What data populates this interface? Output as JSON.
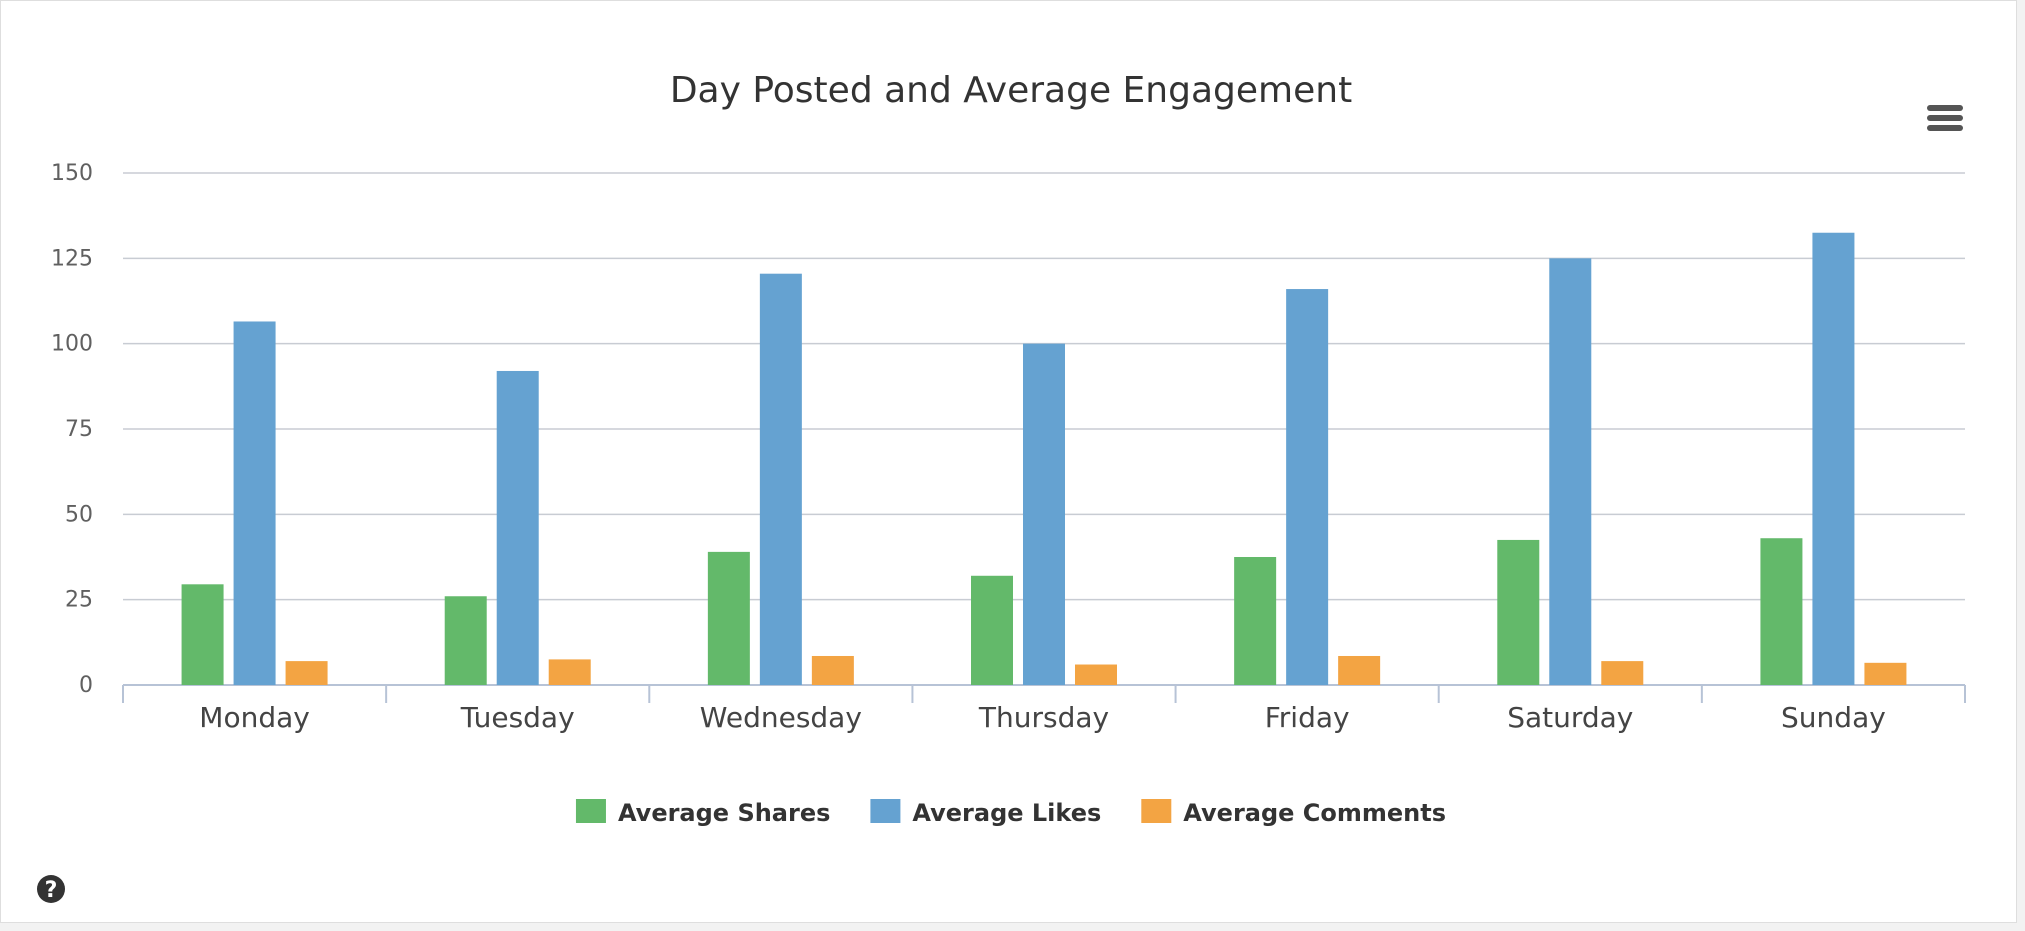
{
  "chart_data": {
    "type": "bar",
    "title": "Day Posted and Average Engagement",
    "xlabel": "",
    "ylabel": "",
    "categories": [
      "Monday",
      "Tuesday",
      "Wednesday",
      "Thursday",
      "Friday",
      "Saturday",
      "Sunday"
    ],
    "ylim": [
      0,
      150
    ],
    "yticks": [
      "0",
      "25",
      "50",
      "75",
      "100",
      "125",
      "150"
    ],
    "grid": true,
    "legend_position": "bottom-center",
    "series": [
      {
        "name": "Average Shares",
        "color": "#63b96a",
        "values": [
          29.5,
          26,
          39,
          32,
          37.5,
          42.5,
          43
        ]
      },
      {
        "name": "Average Likes",
        "color": "#65a2d1",
        "values": [
          106.5,
          92,
          120.5,
          100,
          116,
          125,
          132.5
        ]
      },
      {
        "name": "Average Comments",
        "color": "#f3a443",
        "values": [
          7,
          7.5,
          8.5,
          6,
          8.5,
          7,
          6.5
        ]
      }
    ]
  },
  "icons": {
    "menu": "hamburger-menu-icon",
    "help": "question-circle-icon"
  }
}
